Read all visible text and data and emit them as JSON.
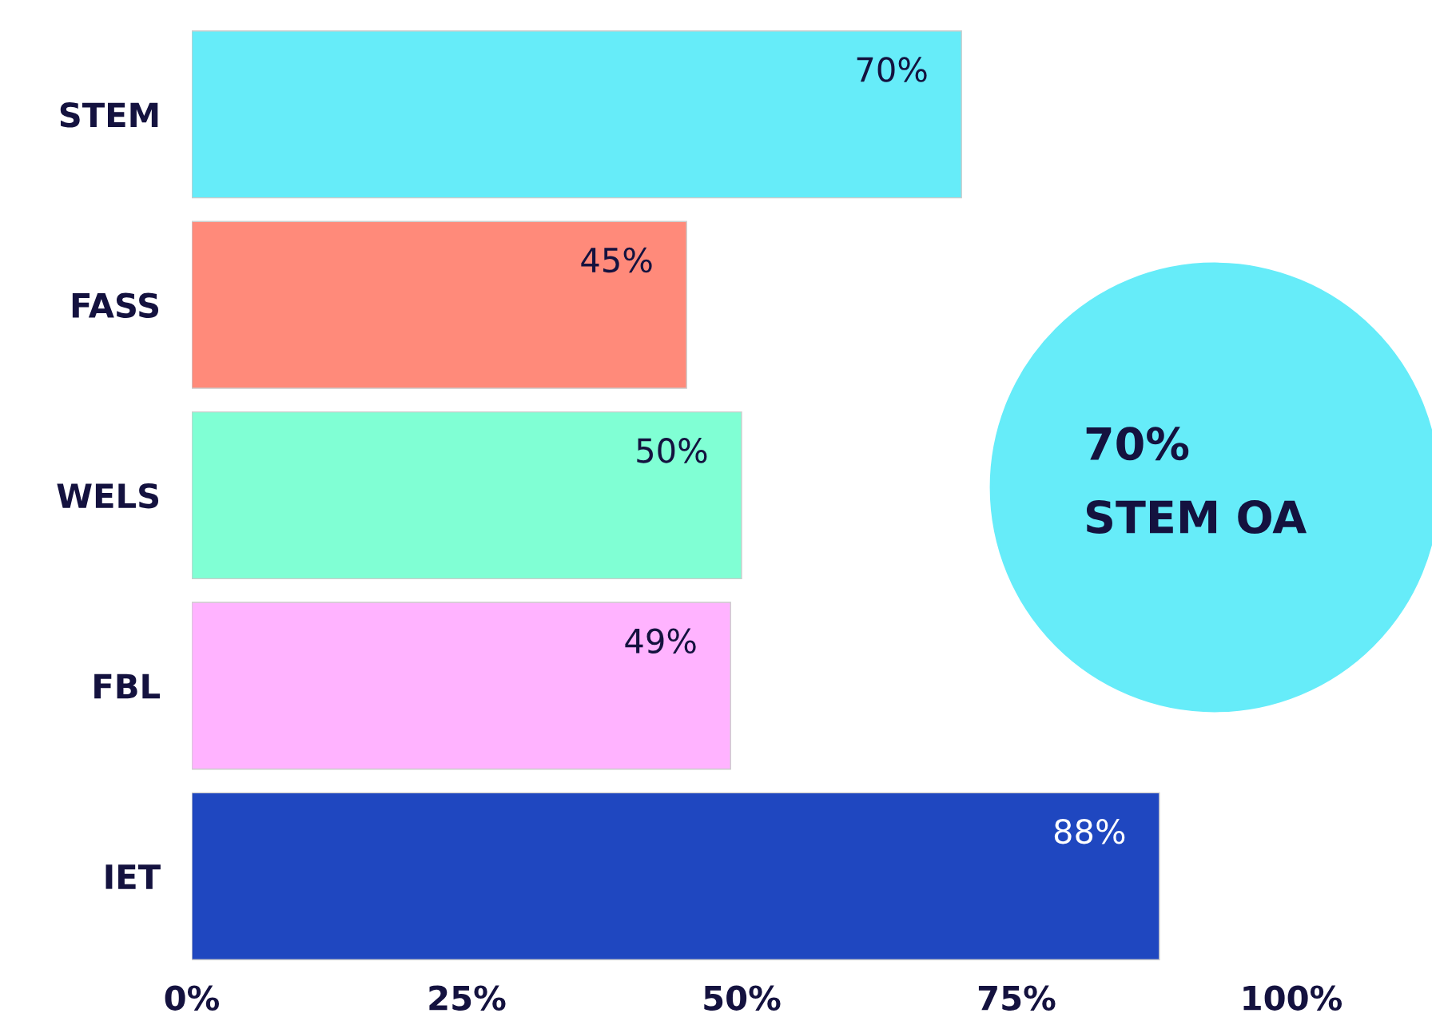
{
  "chart_data": {
    "type": "bar",
    "orientation": "horizontal",
    "categories": [
      "STEM",
      "FASS",
      "WELS",
      "FBL",
      "IET"
    ],
    "values": [
      70,
      45,
      50,
      49,
      88
    ],
    "colors": [
      "#66ecf9",
      "#ff8a7a",
      "#80ffd4",
      "#ffb3ff",
      "#1f47c0"
    ],
    "value_labels": [
      "70%",
      "45%",
      "50%",
      "49%",
      "88%"
    ],
    "xlim": [
      0,
      100
    ],
    "xticks": [
      {
        "value": 0,
        "label": "0%"
      },
      {
        "value": 25,
        "label": "25%"
      },
      {
        "value": 50,
        "label": "50%"
      },
      {
        "value": 75,
        "label": "75%"
      },
      {
        "value": 100,
        "label": "100%"
      }
    ],
    "grid": false,
    "legend": false,
    "annotations": [
      "70%\nSTEM OA"
    ]
  }
}
